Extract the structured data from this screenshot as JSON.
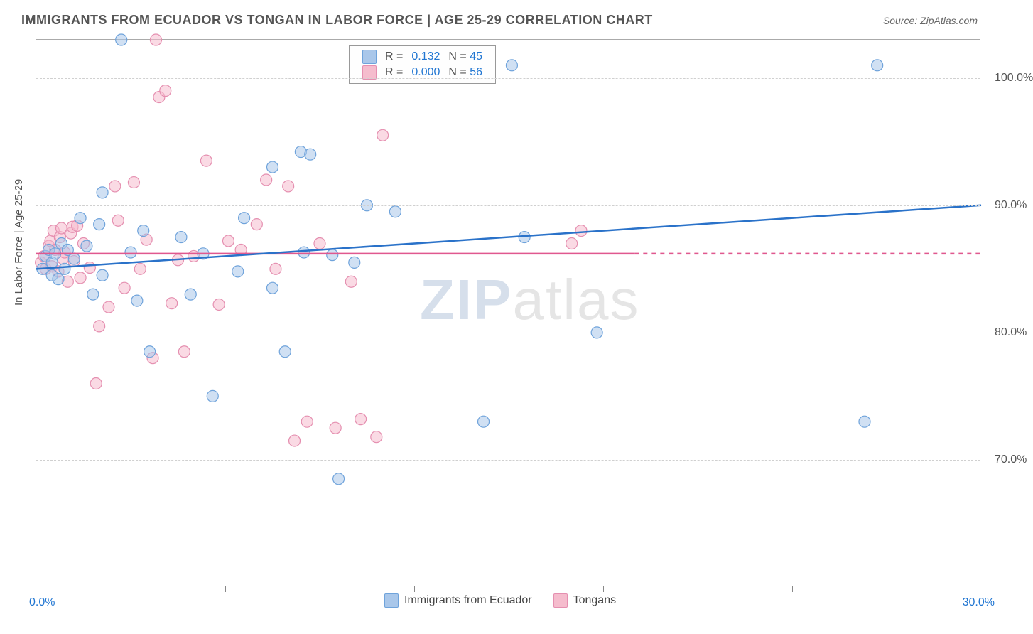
{
  "header": {
    "title": "IMMIGRANTS FROM ECUADOR VS TONGAN IN LABOR FORCE | AGE 25-29 CORRELATION CHART",
    "source_label": "Source:",
    "source_value": "ZipAtlas.com"
  },
  "axes": {
    "y_label": "In Labor Force | Age 25-29",
    "xlim": [
      0,
      30
    ],
    "ylim": [
      60,
      103
    ],
    "y_ticks": [
      70,
      80,
      90,
      100
    ],
    "y_tick_labels": [
      "70.0%",
      "80.0%",
      "90.0%",
      "100.0%"
    ],
    "x_tick_positions": [
      3,
      6,
      9,
      12,
      15,
      18,
      21,
      24,
      27
    ],
    "x_first_label": "0.0%",
    "x_last_label": "30.0%"
  },
  "style": {
    "bg": "#ffffff",
    "grid_color": "#d0d0d0",
    "axis_color": "#aaaaaa",
    "blue_fill": "#a9c7ea",
    "blue_stroke": "#6fa3db",
    "pink_fill": "#f5bccd",
    "pink_stroke": "#e58fb0",
    "blue_line": "#2a72c9",
    "pink_line": "#e0588f",
    "text_color": "#555555",
    "value_color": "#2176d2",
    "marker_radius": 8,
    "marker_opacity": 0.55,
    "line_width": 2.5
  },
  "legend_top": {
    "rows": [
      {
        "swatch": "blue",
        "r": "0.132",
        "n": "45"
      },
      {
        "swatch": "pink",
        "r": "0.000",
        "n": "56"
      }
    ],
    "r_prefix": "R = ",
    "n_prefix": "N = "
  },
  "legend_bottom": {
    "items": [
      {
        "swatch": "blue",
        "label": "Immigrants from Ecuador"
      },
      {
        "swatch": "pink",
        "label": "Tongans"
      }
    ]
  },
  "watermark": {
    "z": "Z",
    "ip": "IP",
    "rest": "atlas"
  },
  "trend_lines": {
    "blue": {
      "x1": 0,
      "y1": 85.0,
      "x2": 30,
      "y2": 90.0
    },
    "pink_solid": {
      "x1": 0,
      "y1": 86.2,
      "x2": 19,
      "y2": 86.2
    },
    "pink_dash": {
      "x1": 19,
      "y1": 86.2,
      "x2": 30,
      "y2": 86.2
    }
  },
  "series": {
    "ecuador": [
      [
        0.2,
        85
      ],
      [
        0.3,
        86
      ],
      [
        0.4,
        86.5
      ],
      [
        0.5,
        85.5
      ],
      [
        0.5,
        84.5
      ],
      [
        0.6,
        86.2
      ],
      [
        0.8,
        87
      ],
      [
        0.9,
        85
      ],
      [
        1.0,
        86.5
      ],
      [
        1.2,
        85.8
      ],
      [
        1.4,
        89
      ],
      [
        1.6,
        86.8
      ],
      [
        1.8,
        83
      ],
      [
        2.1,
        84.5
      ],
      [
        2.0,
        88.5
      ],
      [
        2.1,
        91
      ],
      [
        2.7,
        103
      ],
      [
        3.0,
        86.3
      ],
      [
        3.2,
        82.5
      ],
      [
        3.4,
        88
      ],
      [
        3.6,
        78.5
      ],
      [
        4.6,
        87.5
      ],
      [
        4.9,
        83
      ],
      [
        5.3,
        86.2
      ],
      [
        5.6,
        75
      ],
      [
        6.4,
        84.8
      ],
      [
        6.6,
        89
      ],
      [
        7.5,
        93
      ],
      [
        7.5,
        83.5
      ],
      [
        7.9,
        78.5
      ],
      [
        8.4,
        94.2
      ],
      [
        8.5,
        86.3
      ],
      [
        8.7,
        94
      ],
      [
        9.4,
        86.1
      ],
      [
        9.6,
        68.5
      ],
      [
        10.1,
        85.5
      ],
      [
        10.5,
        90
      ],
      [
        11.4,
        89.5
      ],
      [
        14.2,
        73
      ],
      [
        15.1,
        101
      ],
      [
        15.5,
        87.5
      ],
      [
        17.8,
        80
      ],
      [
        26.3,
        73
      ],
      [
        26.7,
        101
      ],
      [
        0.7,
        84.2
      ]
    ],
    "tongan": [
      [
        0.15,
        85.5
      ],
      [
        0.25,
        86
      ],
      [
        0.3,
        85
      ],
      [
        0.4,
        86.8
      ],
      [
        0.45,
        87.2
      ],
      [
        0.5,
        85.2
      ],
      [
        0.55,
        88
      ],
      [
        0.6,
        86.5
      ],
      [
        0.7,
        84.8
      ],
      [
        0.75,
        87.5
      ],
      [
        0.8,
        88.2
      ],
      [
        0.85,
        85.8
      ],
      [
        0.9,
        86.3
      ],
      [
        1.0,
        84
      ],
      [
        1.1,
        87.8
      ],
      [
        1.15,
        88.3
      ],
      [
        1.2,
        85.6
      ],
      [
        1.3,
        88.4
      ],
      [
        1.4,
        84.3
      ],
      [
        1.5,
        87
      ],
      [
        1.7,
        85.1
      ],
      [
        1.9,
        76
      ],
      [
        2.0,
        80.5
      ],
      [
        2.3,
        82
      ],
      [
        2.5,
        91.5
      ],
      [
        2.6,
        88.8
      ],
      [
        2.8,
        83.5
      ],
      [
        3.1,
        91.8
      ],
      [
        3.3,
        85
      ],
      [
        3.5,
        87.3
      ],
      [
        3.7,
        78
      ],
      [
        3.8,
        103
      ],
      [
        3.9,
        98.5
      ],
      [
        4.1,
        99
      ],
      [
        4.3,
        82.3
      ],
      [
        4.5,
        85.7
      ],
      [
        4.7,
        78.5
      ],
      [
        5.0,
        86
      ],
      [
        5.4,
        93.5
      ],
      [
        5.8,
        82.2
      ],
      [
        6.1,
        87.2
      ],
      [
        6.5,
        86.5
      ],
      [
        7.0,
        88.5
      ],
      [
        7.3,
        92
      ],
      [
        7.6,
        85
      ],
      [
        8.0,
        91.5
      ],
      [
        8.2,
        71.5
      ],
      [
        8.6,
        73
      ],
      [
        9.0,
        87
      ],
      [
        9.5,
        72.5
      ],
      [
        10.0,
        84
      ],
      [
        10.3,
        73.2
      ],
      [
        10.8,
        71.8
      ],
      [
        11.0,
        95.5
      ],
      [
        17.0,
        87
      ],
      [
        17.3,
        88
      ]
    ]
  }
}
